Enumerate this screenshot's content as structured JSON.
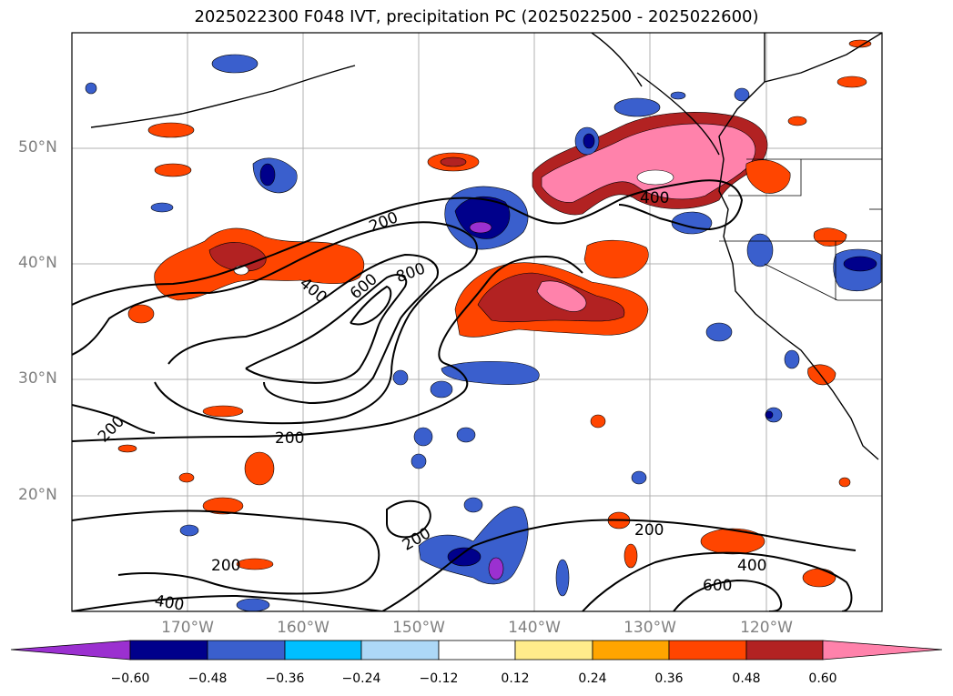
{
  "title": "2025022300 F048 IVT, precipitation PC (2025022500 - 2025022600)",
  "lat_labels": [
    "50°N",
    "40°N",
    "30°N",
    "20°N"
  ],
  "lon_labels": [
    "170°W",
    "160°W",
    "150°W",
    "140°W",
    "130°W",
    "120°W"
  ],
  "contour_labels": [
    "200",
    "400",
    "600",
    "800",
    "400",
    "200",
    "200",
    "200",
    "200",
    "400",
    "200",
    "400",
    "600"
  ],
  "colorbar": {
    "tick_labels": [
      "−0.60",
      "−0.48",
      "−0.36",
      "−0.24",
      "−0.12",
      "0.12",
      "0.24",
      "0.36",
      "0.48",
      "0.60"
    ],
    "colors": [
      "#9b30d0",
      "#00008b",
      "#3a5fcd",
      "#00bfff",
      "#add8f7",
      "#ffffff",
      "#ffec8b",
      "#ffa500",
      "#ff4500",
      "#b22222",
      "#ff82ab"
    ]
  },
  "chart_data": {
    "type": "heatmap",
    "title": "2025022300 F048 IVT, precipitation PC (2025022500 - 2025022600)",
    "lat_range": [
      10,
      60
    ],
    "lon_range": [
      -180,
      -110
    ],
    "grid": true,
    "contour_levels": [
      200,
      400,
      600,
      800
    ],
    "colorbar_levels": [
      -0.6,
      -0.48,
      -0.36,
      -0.24,
      -0.12,
      0.12,
      0.24,
      0.36,
      0.48,
      0.6
    ]
  }
}
